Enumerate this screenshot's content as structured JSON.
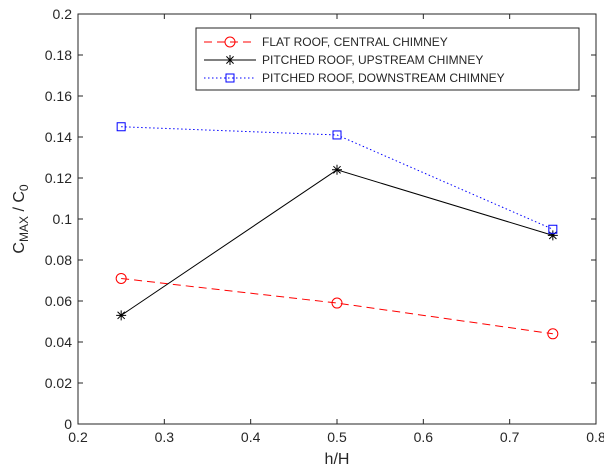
{
  "chart_data": {
    "type": "line",
    "xlabel": "h/H",
    "ylabel": {
      "main": "C",
      "sub1": "MAX",
      "sep": " / C",
      "sub2": "0"
    },
    "xlim": [
      0.2,
      0.8
    ],
    "ylim": [
      0,
      0.2
    ],
    "xticks": [
      "0.2",
      "0.3",
      "0.4",
      "0.5",
      "0.6",
      "0.7",
      "0.8"
    ],
    "yticks": [
      "0",
      "0.02",
      "0.04",
      "0.06",
      "0.08",
      "0.1",
      "0.12",
      "0.14",
      "0.16",
      "0.18",
      "0.2"
    ],
    "grid": false,
    "legend_position": "top-right",
    "series": [
      {
        "name": "FLAT ROOF, CENTRAL CHIMNEY",
        "color": "#ff0000",
        "line_style": "dashed",
        "marker": "circle",
        "x": [
          0.25,
          0.5,
          0.75
        ],
        "y": [
          0.071,
          0.059,
          0.044
        ]
      },
      {
        "name": "PITCHED ROOF, UPSTREAM CHIMNEY",
        "color": "#000000",
        "line_style": "solid",
        "marker": "asterisk",
        "x": [
          0.25,
          0.5,
          0.75
        ],
        "y": [
          0.053,
          0.124,
          0.092
        ]
      },
      {
        "name": "PITCHED ROOF, DOWNSTREAM CHIMNEY",
        "color": "#0000ff",
        "line_style": "dotted",
        "marker": "square",
        "x": [
          0.25,
          0.5,
          0.75
        ],
        "y": [
          0.145,
          0.141,
          0.095
        ]
      }
    ]
  }
}
